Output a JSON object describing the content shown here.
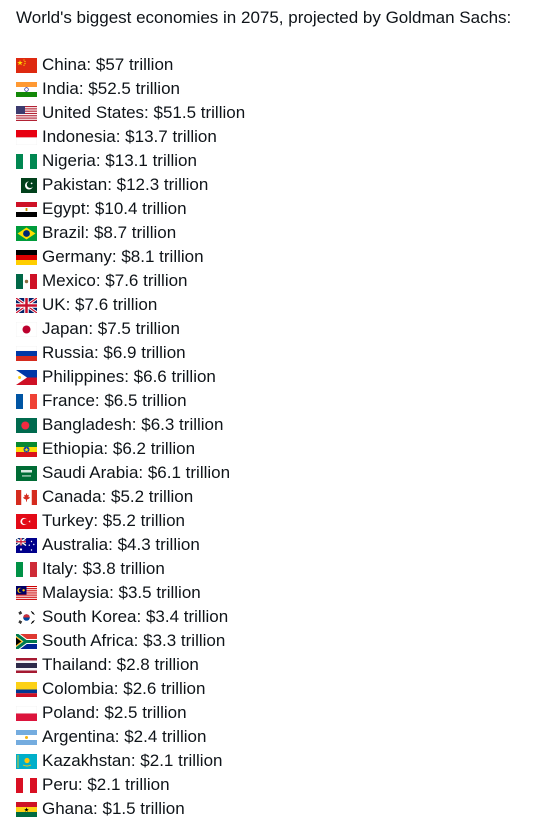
{
  "title": "World's biggest economies in 2075, projected by Goldman Sachs:",
  "entries": [
    {
      "icon": "china-flag-icon",
      "text": "China: $57 trillion"
    },
    {
      "icon": "india-flag-icon",
      "text": "India: $52.5 trillion"
    },
    {
      "icon": "united-states-flag-icon",
      "text": "United States: $51.5 trillion"
    },
    {
      "icon": "indonesia-flag-icon",
      "text": "Indonesia: $13.7 trillion"
    },
    {
      "icon": "nigeria-flag-icon",
      "text": "Nigeria: $13.1 trillion"
    },
    {
      "icon": "pakistan-flag-icon",
      "text": "Pakistan: $12.3 trillion"
    },
    {
      "icon": "egypt-flag-icon",
      "text": "Egypt: $10.4 trillion"
    },
    {
      "icon": "brazil-flag-icon",
      "text": "Brazil: $8.7 trillion"
    },
    {
      "icon": "germany-flag-icon",
      "text": "Germany: $8.1 trillion"
    },
    {
      "icon": "mexico-flag-icon",
      "text": "Mexico: $7.6 trillion"
    },
    {
      "icon": "uk-flag-icon",
      "text": "UK: $7.6 trillion"
    },
    {
      "icon": "japan-flag-icon",
      "text": "Japan: $7.5 trillion"
    },
    {
      "icon": "russia-flag-icon",
      "text": "Russia: $6.9 trillion"
    },
    {
      "icon": "philippines-flag-icon",
      "text": "Philippines: $6.6 trillion"
    },
    {
      "icon": "france-flag-icon",
      "text": "France: $6.5 trillion"
    },
    {
      "icon": "bangladesh-flag-icon",
      "text": "Bangladesh: $6.3 trillion"
    },
    {
      "icon": "ethiopia-flag-icon",
      "text": "Ethiopia: $6.2 trillion"
    },
    {
      "icon": "saudi-arabia-flag-icon",
      "text": "Saudi Arabia: $6.1 trillion"
    },
    {
      "icon": "canada-flag-icon",
      "text": "Canada: $5.2 trillion"
    },
    {
      "icon": "turkey-flag-icon",
      "text": "Turkey: $5.2 trillion"
    },
    {
      "icon": "australia-flag-icon",
      "text": "Australia: $4.3 trillion"
    },
    {
      "icon": "italy-flag-icon",
      "text": "Italy: $3.8 trillion"
    },
    {
      "icon": "malaysia-flag-icon",
      "text": "Malaysia: $3.5 trillion"
    },
    {
      "icon": "south-korea-flag-icon",
      "text": "South Korea: $3.4 trillion"
    },
    {
      "icon": "south-africa-flag-icon",
      "text": "South Africa: $3.3 trillion"
    },
    {
      "icon": "thailand-flag-icon",
      "text": "Thailand: $2.8 trillion"
    },
    {
      "icon": "colombia-flag-icon",
      "text": "Colombia: $2.6 trillion"
    },
    {
      "icon": "poland-flag-icon",
      "text": "Poland: $2.5 trillion"
    },
    {
      "icon": "argentina-flag-icon",
      "text": "Argentina: $2.4 trillion"
    },
    {
      "icon": "kazakhstan-flag-icon",
      "text": "Kazakhstan: $2.1 trillion"
    },
    {
      "icon": "peru-flag-icon",
      "text": "Peru: $2.1 trillion"
    },
    {
      "icon": "ghana-flag-icon",
      "text": "Ghana: $1.5 trillion"
    }
  ]
}
